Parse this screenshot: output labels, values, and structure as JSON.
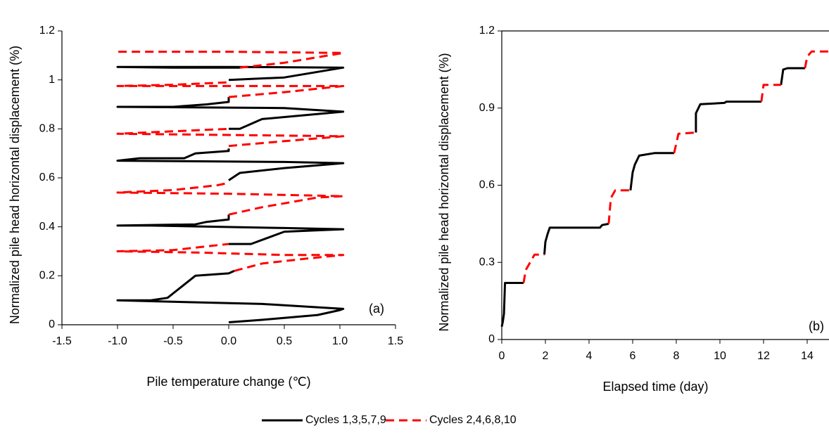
{
  "chart_data": [
    {
      "type": "line",
      "x_label": "Pile temperature  change (℃)",
      "y_label": "Normalized pile head horizontal displacement (%)",
      "annotation": "(a)",
      "xlim": [
        -1.5,
        1.5
      ],
      "xticks": [
        -1.5,
        {
          "value": -1,
          "label": "-1.0"
        },
        -0.5,
        {
          "value": 0,
          "label": "0.0"
        },
        0.5,
        {
          "value": 1,
          "label": "1.0"
        },
        1.5
      ],
      "ylim": [
        0,
        1.2
      ],
      "yticks": [
        0,
        0.2,
        0.4,
        0.6,
        0.8,
        1,
        1.2
      ],
      "frame": false,
      "series": [
        {
          "name": "Cycles 1,3,5,7,9",
          "color": "#000000",
          "style": "solid",
          "x": [
            0,
            0.3,
            0.8,
            1.0,
            1.03,
            0.3,
            -0.6,
            -1.0,
            -0.7,
            -0.55,
            -0.3,
            0,
            0.05,
            null,
            0,
            0.2,
            0.5,
            1.03,
            0.5,
            -0.7,
            -1.0,
            -0.3,
            -0.2,
            0,
            0,
            null,
            0,
            0.1,
            0.5,
            1.03,
            0.5,
            -1.0,
            -0.8,
            -0.4,
            -0.3,
            0,
            0,
            null,
            0,
            0.1,
            0.3,
            1.03,
            0.5,
            -1.0,
            -0.5,
            -0.2,
            0,
            0,
            null,
            0,
            0.5,
            1.03,
            0,
            -1.0,
            -0.5,
            0,
            0.1
          ],
          "values": [
            0.01,
            0.02,
            0.04,
            0.06,
            0.065,
            0.085,
            0.095,
            0.1,
            0.1,
            0.11,
            0.2,
            0.21,
            0.22,
            null,
            0.33,
            0.33,
            0.38,
            0.39,
            0.395,
            0.405,
            0.405,
            0.41,
            0.42,
            0.43,
            0.45,
            null,
            0.59,
            0.62,
            0.64,
            0.66,
            0.665,
            0.67,
            0.68,
            0.68,
            0.7,
            0.71,
            0.72,
            null,
            0.8,
            0.8,
            0.84,
            0.87,
            0.885,
            0.89,
            0.89,
            0.9,
            0.91,
            0.93,
            null,
            1.0,
            1.01,
            1.05,
            1.053,
            1.053,
            1.05,
            1.05,
            1.05
          ]
        },
        {
          "name": "Cycles 2,4,6,8,10",
          "color": "#ff0000",
          "style": "dashed",
          "x": [
            0.05,
            0.3,
            0.7,
            1.03,
            0.5,
            -0.3,
            -1.0,
            -0.5,
            -0.2,
            0,
            null,
            0,
            0.3,
            0.8,
            1.03,
            0,
            -1.0,
            -0.5,
            -0.1,
            0,
            null,
            0,
            0.5,
            1.03,
            0,
            -1.0,
            -0.5,
            0,
            null,
            0,
            0.5,
            1.03,
            0,
            -1.0,
            -0.5,
            0,
            null,
            0.1,
            0.5,
            1.03,
            0,
            -1.0
          ],
          "values": [
            0.22,
            0.25,
            0.27,
            0.285,
            0.285,
            0.295,
            0.3,
            0.305,
            0.32,
            0.33,
            null,
            0.45,
            0.48,
            0.52,
            0.525,
            0.535,
            0.54,
            0.55,
            0.57,
            0.58,
            null,
            0.73,
            0.75,
            0.77,
            0.775,
            0.78,
            0.79,
            0.8,
            null,
            0.93,
            0.95,
            0.975,
            0.975,
            0.975,
            0.98,
            0.99,
            null,
            1.05,
            1.07,
            1.11,
            1.115,
            1.115
          ]
        }
      ]
    },
    {
      "type": "line",
      "x_label": "Elapsed time (day)",
      "y_label": "Normalized pile head horizontal displacement (%)",
      "annotation": "(b)",
      "xlim": [
        0,
        15
      ],
      "xticks": [
        0,
        2,
        4,
        6,
        8,
        10,
        12,
        14
      ],
      "ylim": [
        0,
        1.2
      ],
      "yticks": [
        0,
        0.3,
        0.6,
        0.9,
        1.2
      ],
      "frame": true,
      "series": [
        {
          "color": "#000000",
          "style": "solid",
          "x": [
            0,
            0.05,
            0.1,
            0.15,
            1,
            null,
            1.95,
            2,
            2.1,
            2.2,
            4.5,
            4.6,
            4.9,
            null,
            5.9,
            6,
            6.1,
            6.3,
            7,
            7.9,
            null,
            8.9,
            8.9,
            9.1,
            10.2,
            10.3,
            11.9,
            null,
            12.8,
            12.9,
            13.1,
            13.9
          ],
          "values": [
            0.05,
            0.07,
            0.1,
            0.22,
            0.22,
            null,
            0.33,
            0.38,
            0.41,
            0.435,
            0.435,
            0.445,
            0.45,
            null,
            0.58,
            0.65,
            0.68,
            0.715,
            0.725,
            0.725,
            null,
            0.805,
            0.88,
            0.915,
            0.92,
            0.925,
            0.925,
            null,
            0.99,
            1.05,
            1.055,
            1.055
          ]
        },
        {
          "color": "#ff0000",
          "style": "dashed",
          "x": [
            1,
            1.1,
            1.3,
            1.5,
            1.95,
            null,
            4.9,
            5.0,
            5.2,
            5.9,
            null,
            7.9,
            8.1,
            8.9,
            null,
            11.9,
            12,
            12.8,
            null,
            13.9,
            14,
            14.2,
            15
          ],
          "values": [
            0.22,
            0.27,
            0.3,
            0.33,
            0.33,
            null,
            0.45,
            0.55,
            0.58,
            0.58,
            null,
            0.725,
            0.8,
            0.805,
            null,
            0.925,
            0.99,
            0.99,
            null,
            1.055,
            1.1,
            1.12,
            1.12
          ]
        }
      ]
    }
  ]
}
